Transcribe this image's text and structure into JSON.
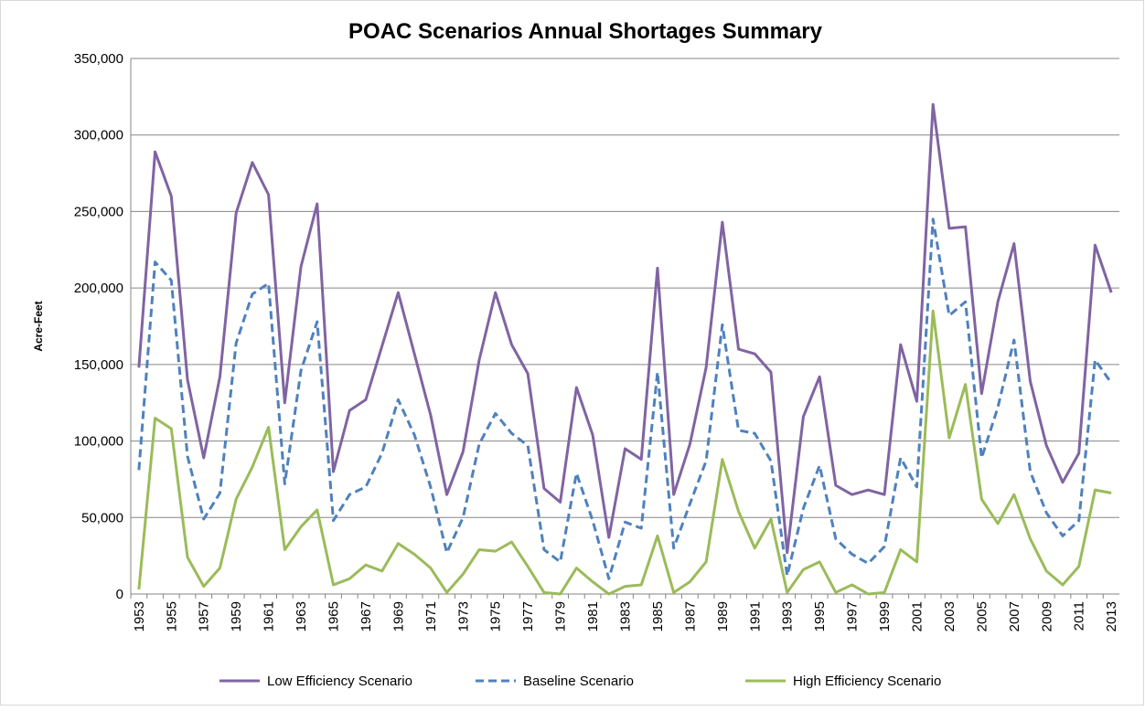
{
  "chart_data": {
    "type": "line",
    "title": "POAC Scenarios Annual Shortages Summary",
    "y_label": "Acre-Feet",
    "categories": [
      "1953",
      null,
      "1955",
      null,
      "1957",
      null,
      "1959",
      null,
      "1961",
      null,
      "1963",
      null,
      "1965",
      null,
      "1967",
      null,
      "1969",
      null,
      "1971",
      null,
      "1973",
      null,
      "1975",
      null,
      "1977",
      null,
      "1979",
      null,
      "1981",
      null,
      "1983",
      null,
      "1985",
      null,
      "1987",
      null,
      "1989",
      null,
      "1991",
      null,
      "1993",
      null,
      "1995",
      null,
      "1997",
      null,
      "1999",
      null,
      "2001",
      null,
      "2003",
      null,
      "2005",
      null,
      "2007",
      null,
      "2009",
      null,
      "2011",
      null,
      "2013"
    ],
    "series": [
      {
        "name": "Low Efficiency Scenario",
        "color": "#8064a2",
        "dashed": false,
        "values": [
          148000,
          289000,
          260000,
          140000,
          89000,
          142000,
          249000,
          282000,
          261000,
          125000,
          214000,
          255000,
          80000,
          120000,
          127000,
          162000,
          197000,
          157000,
          117000,
          65000,
          93000,
          153000,
          197000,
          163000,
          144000,
          69000,
          60000,
          135000,
          104000,
          37000,
          95000,
          88000,
          213000,
          65000,
          98000,
          148000,
          243000,
          160000,
          157000,
          145000,
          27000,
          116000,
          142000,
          71000,
          65000,
          68000,
          65000,
          163000,
          126000,
          320000,
          239000,
          240000,
          131000,
          191000,
          229000,
          139000,
          97000,
          73000,
          92000,
          228000,
          197000
        ]
      },
      {
        "name": "Baseline Scenario",
        "color": "#4f81bd",
        "dashed": true,
        "values": [
          81000,
          217000,
          205000,
          90000,
          49000,
          66000,
          164000,
          196000,
          203000,
          72000,
          146000,
          178000,
          48000,
          65000,
          70000,
          92000,
          127000,
          104000,
          70000,
          27000,
          50000,
          98000,
          118000,
          105000,
          97000,
          29000,
          21000,
          79000,
          48000,
          10000,
          47000,
          43000,
          145000,
          30000,
          59000,
          87000,
          176000,
          107000,
          105000,
          87000,
          12000,
          56000,
          84000,
          36000,
          26000,
          20000,
          31000,
          89000,
          70000,
          245000,
          182000,
          191000,
          89000,
          122000,
          166000,
          80000,
          53000,
          38000,
          48000,
          153000,
          138000
        ]
      },
      {
        "name": "High Efficiency Scenario",
        "color": "#9bbb59",
        "dashed": false,
        "values": [
          3000,
          115000,
          108000,
          24000,
          5000,
          17000,
          62000,
          83000,
          109000,
          29000,
          44000,
          55000,
          6000,
          10000,
          19000,
          15000,
          33000,
          26000,
          17000,
          1000,
          13000,
          29000,
          28000,
          34000,
          18000,
          1000,
          0,
          17000,
          8000,
          0,
          5000,
          6000,
          38000,
          1000,
          8000,
          21000,
          88000,
          54000,
          30000,
          49000,
          1000,
          16000,
          21000,
          1000,
          6000,
          0,
          1000,
          29000,
          21000,
          185000,
          102000,
          137000,
          62000,
          46000,
          65000,
          36000,
          15000,
          6000,
          18000,
          68000,
          66000
        ]
      }
    ],
    "ylim": [
      0,
      350000
    ],
    "yticks": [
      0,
      {
        "value": 50000,
        "label": "50,000"
      },
      {
        "value": 100000,
        "label": "100,000"
      },
      {
        "value": 150000,
        "label": "150,000"
      },
      {
        "value": 200000,
        "label": "200,000"
      },
      {
        "value": 250000,
        "label": "250,000"
      },
      {
        "value": 300000,
        "label": "300,000"
      },
      {
        "value": 350000,
        "label": "350,000"
      }
    ],
    "grid": true,
    "legend": "bottom"
  }
}
